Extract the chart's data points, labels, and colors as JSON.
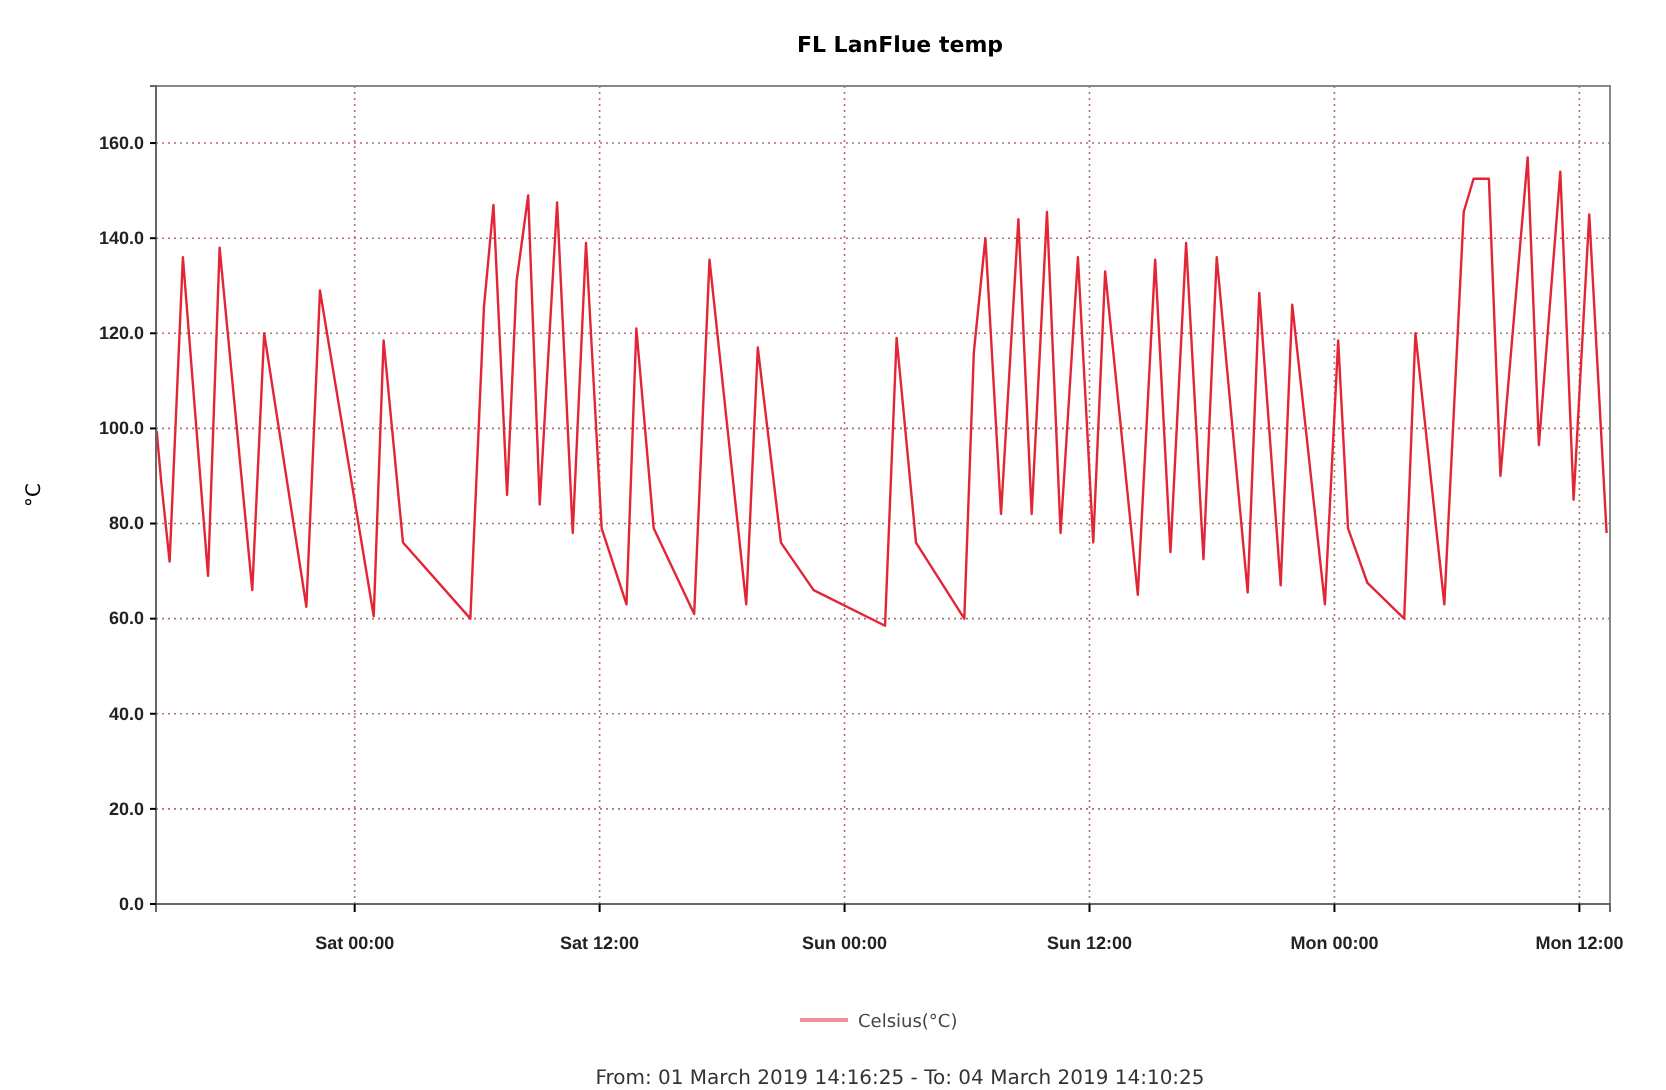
{
  "chart_data": {
    "type": "line",
    "title": "FL LanFlue temp",
    "ylabel": "°C",
    "annotations": [
      "From: 01 March 2019 14:16:25  -  To: 04 March 2019 14:10:25"
    ],
    "xlim": [
      "2019-03-01T14:16",
      "2019-03-04T13:30"
    ],
    "xticks": [
      {
        "value": "2019-03-02T00:00",
        "label": "Sat 00:00"
      },
      {
        "value": "2019-03-02T12:00",
        "label": "Sat 12:00"
      },
      {
        "value": "2019-03-03T00:00",
        "label": "Sun 00:00"
      },
      {
        "value": "2019-03-03T12:00",
        "label": "Sun 12:00"
      },
      {
        "value": "2019-03-04T00:00",
        "label": "Mon 00:00"
      },
      {
        "value": "2019-03-04T12:00",
        "label": "Mon 12:00"
      }
    ],
    "ylim": [
      0,
      172
    ],
    "yticks": [
      {
        "value": 0,
        "label": "0.0"
      },
      {
        "value": 20,
        "label": "20.0"
      },
      {
        "value": 40,
        "label": "40.0"
      },
      {
        "value": 60,
        "label": "60.0"
      },
      {
        "value": 80,
        "label": "80.0"
      },
      {
        "value": 100,
        "label": "100.0"
      },
      {
        "value": 120,
        "label": "120.0"
      },
      {
        "value": 140,
        "label": "140.0"
      },
      {
        "value": 160,
        "label": "160.0"
      }
    ],
    "grid": true,
    "legend": "bottom",
    "marker": "none",
    "line_style": "solid",
    "series": [
      {
        "name": "Celsius(°C)",
        "color": "#e32636",
        "x": [
          "2019-03-01T14:18",
          "2019-03-01T14:31",
          "2019-03-01T14:56",
          "2019-03-01T15:35",
          "2019-03-01T16:49",
          "2019-03-01T17:23",
          "2019-03-01T18:59",
          "2019-03-01T19:34",
          "2019-03-01T21:38",
          "2019-03-01T22:18",
          "2019-03-02T00:56",
          "2019-03-02T01:25",
          "2019-03-02T02:22",
          "2019-03-02T05:40",
          "2019-03-02T06:20",
          "2019-03-02T06:48",
          "2019-03-02T07:28",
          "2019-03-02T07:56",
          "2019-03-02T08:30",
          "2019-03-02T09:04",
          "2019-03-02T09:55",
          "2019-03-02T10:41",
          "2019-03-02T11:20",
          "2019-03-02T12:06",
          "2019-03-02T13:19",
          "2019-03-02T13:48",
          "2019-03-02T14:39",
          "2019-03-02T16:38",
          "2019-03-02T17:23",
          "2019-03-02T19:11",
          "2019-03-02T19:45",
          "2019-03-02T20:53",
          "2019-03-02T22:29",
          "2019-03-03T01:59",
          "2019-03-03T02:33",
          "2019-03-03T03:30",
          "2019-03-03T05:52",
          "2019-03-03T06:20",
          "2019-03-03T06:54",
          "2019-03-03T07:40",
          "2019-03-03T08:31",
          "2019-03-03T09:10",
          "2019-03-03T09:55",
          "2019-03-03T10:35",
          "2019-03-03T11:26",
          "2019-03-03T12:11",
          "2019-03-03T12:46",
          "2019-03-03T14:22",
          "2019-03-03T15:13",
          "2019-03-03T15:58",
          "2019-03-03T16:44",
          "2019-03-03T17:35",
          "2019-03-03T18:14",
          "2019-03-03T19:45",
          "2019-03-03T20:19",
          "2019-03-03T21:22",
          "2019-03-03T21:56",
          "2019-03-03T23:32",
          "2019-03-04T00:11",
          "2019-03-04T00:40",
          "2019-03-04T01:37",
          "2019-03-04T03:25",
          "2019-03-04T03:58",
          "2019-03-04T05:23",
          "2019-03-04T06:20",
          "2019-03-04T06:49",
          "2019-03-04T07:34",
          "2019-03-04T08:08",
          "2019-03-04T09:28",
          "2019-03-04T10:01",
          "2019-03-04T11:04",
          "2019-03-04T11:43",
          "2019-03-04T12:29",
          "2019-03-04T13:20"
        ],
        "values": [
          99.5,
          89,
          72,
          136,
          69,
          138,
          66,
          120,
          62.5,
          129,
          60.5,
          118.5,
          76,
          60,
          125.5,
          147,
          86,
          131,
          149,
          84,
          147.5,
          78,
          139,
          79,
          63,
          121,
          79,
          61,
          135.5,
          63,
          117,
          76,
          66,
          58.5,
          119,
          76,
          60,
          116,
          140,
          82,
          144,
          82,
          145.5,
          78,
          136,
          76,
          133,
          65,
          135.5,
          74,
          139,
          72.5,
          136,
          65.5,
          128.5,
          67,
          126,
          63,
          118.5,
          79,
          67.5,
          60,
          120,
          63,
          145.5,
          152.5,
          152.5,
          90,
          157,
          96.5,
          154,
          85,
          145,
          78
        ]
      }
    ]
  }
}
